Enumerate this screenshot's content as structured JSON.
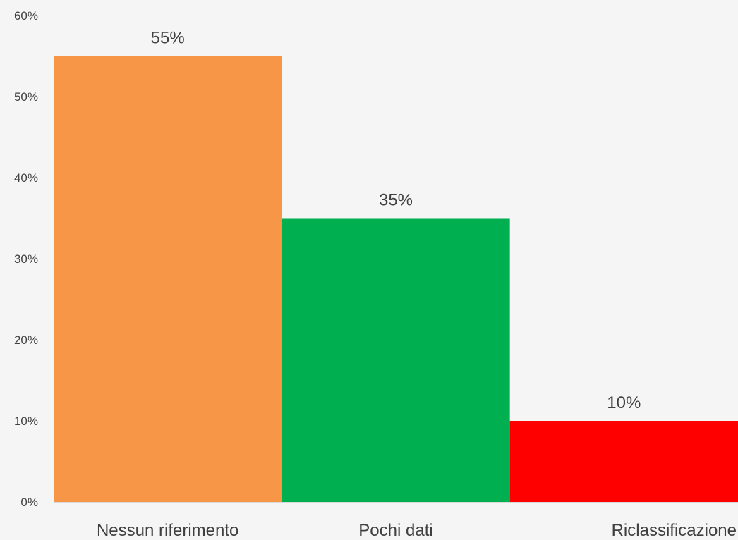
{
  "chart_data": {
    "type": "bar",
    "categories": [
      "Nessun riferimento",
      "Pochi dati",
      "Riclassificazione"
    ],
    "values": [
      55,
      35,
      10
    ],
    "value_labels": [
      "55%",
      "35%",
      "10%"
    ],
    "colors": [
      "#f79646",
      "#00b050",
      "#ff0000"
    ],
    "title": "",
    "xlabel": "",
    "ylabel": "",
    "ylim": [
      0,
      60
    ],
    "yticks": [
      0,
      10,
      20,
      30,
      40,
      50,
      60
    ],
    "ytick_labels": [
      "0%",
      "10%",
      "20%",
      "30%",
      "40%",
      "50%",
      "60%"
    ],
    "grid": false,
    "legend": "none",
    "background": "#f5f5f5",
    "text_color": "#404040"
  }
}
